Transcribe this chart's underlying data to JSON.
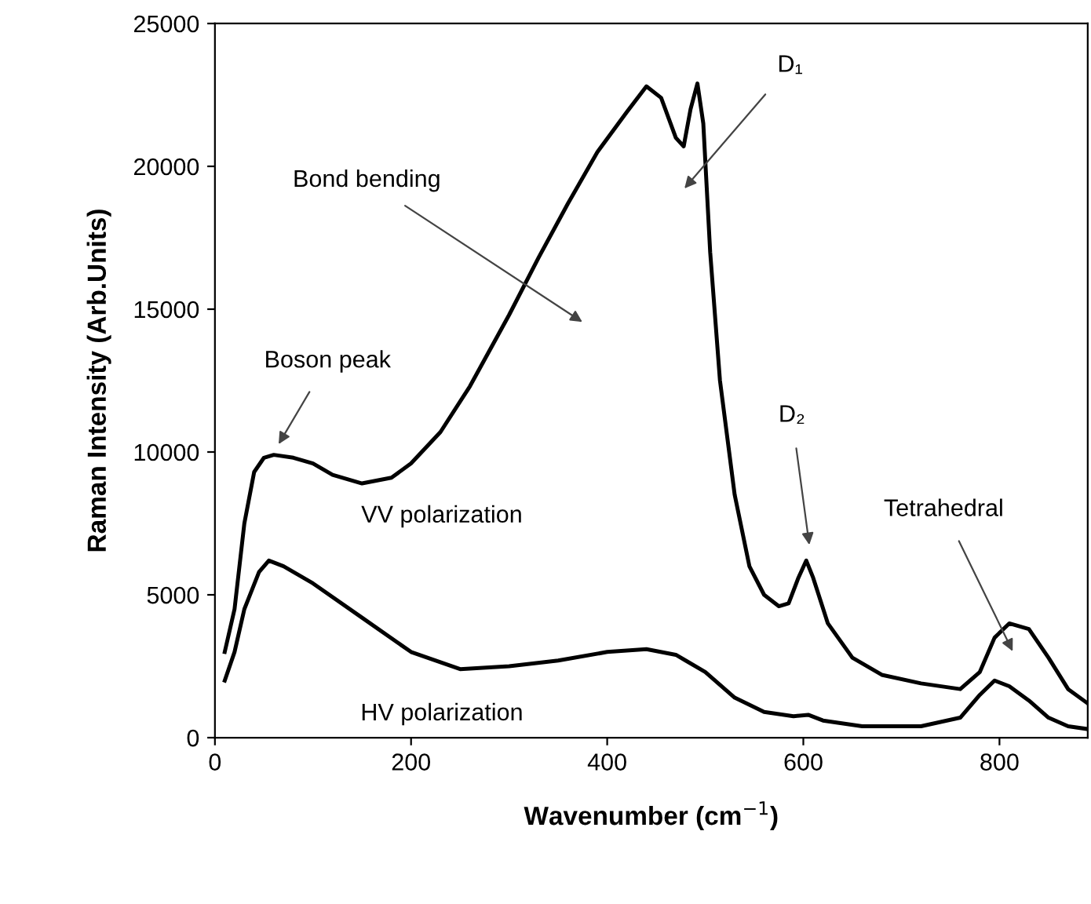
{
  "chart_data": {
    "type": "line",
    "xlabel": "Wavenumber (cm$^{−1}$)",
    "ylabel": "Raman Intensity (Arb.Units)",
    "series": [
      {
        "name": "VV polarization",
        "color": "#000000",
        "x": [
          10,
          20,
          30,
          40,
          50,
          60,
          80,
          100,
          120,
          150,
          180,
          200,
          230,
          260,
          300,
          330,
          360,
          390,
          420,
          440,
          455,
          470,
          478,
          485,
          492,
          498,
          505,
          515,
          530,
          545,
          560,
          575,
          585,
          595,
          603,
          610,
          625,
          650,
          680,
          720,
          760,
          780,
          795,
          810,
          830,
          850,
          870,
          890
        ],
        "values": [
          3000,
          4500,
          7500,
          9300,
          9800,
          9900,
          9800,
          9600,
          9200,
          8900,
          9100,
          9600,
          10700,
          12300,
          14800,
          16800,
          18700,
          20500,
          21900,
          22800,
          22400,
          21000,
          20700,
          22000,
          22900,
          21500,
          17000,
          12500,
          8500,
          6000,
          5000,
          4600,
          4700,
          5600,
          6200,
          5600,
          4000,
          2800,
          2200,
          1900,
          1700,
          2300,
          3500,
          4000,
          3800,
          2800,
          1700,
          1200
        ]
      },
      {
        "name": "HV polarization",
        "color": "#000000",
        "x": [
          10,
          20,
          30,
          45,
          55,
          70,
          100,
          150,
          200,
          250,
          300,
          350,
          400,
          440,
          470,
          480,
          500,
          530,
          560,
          590,
          605,
          620,
          660,
          720,
          760,
          780,
          795,
          810,
          830,
          850,
          870,
          890
        ],
        "values": [
          2000,
          3000,
          4500,
          5800,
          6200,
          6000,
          5400,
          4200,
          3000,
          2400,
          2500,
          2700,
          3000,
          3100,
          2900,
          2700,
          2300,
          1400,
          900,
          750,
          800,
          600,
          400,
          400,
          700,
          1500,
          2000,
          1800,
          1300,
          700,
          400,
          300
        ]
      }
    ],
    "xlim": [
      0,
      890
    ],
    "xticks": [
      0,
      200,
      400,
      600,
      800
    ],
    "ylim": [
      0,
      25000
    ],
    "yticks": [
      0,
      5000,
      10000,
      15000,
      20000,
      25000
    ],
    "grid": false,
    "legend": false,
    "marker": "none",
    "line_style": "solid",
    "annotations": [
      "Boson peak",
      "Bond bending",
      "D₁",
      "D₂",
      "Tetrahedral"
    ]
  }
}
